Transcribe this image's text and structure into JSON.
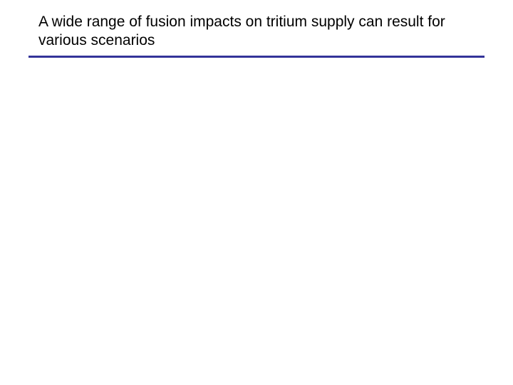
{
  "slide": {
    "title": "A wide range of fusion impacts on tritium supply can result for various scenarios",
    "title_fontsize": 21,
    "title_color": "#000000",
    "divider_color": "#333399",
    "divider_height": 3,
    "background_color": "#ffffff"
  }
}
